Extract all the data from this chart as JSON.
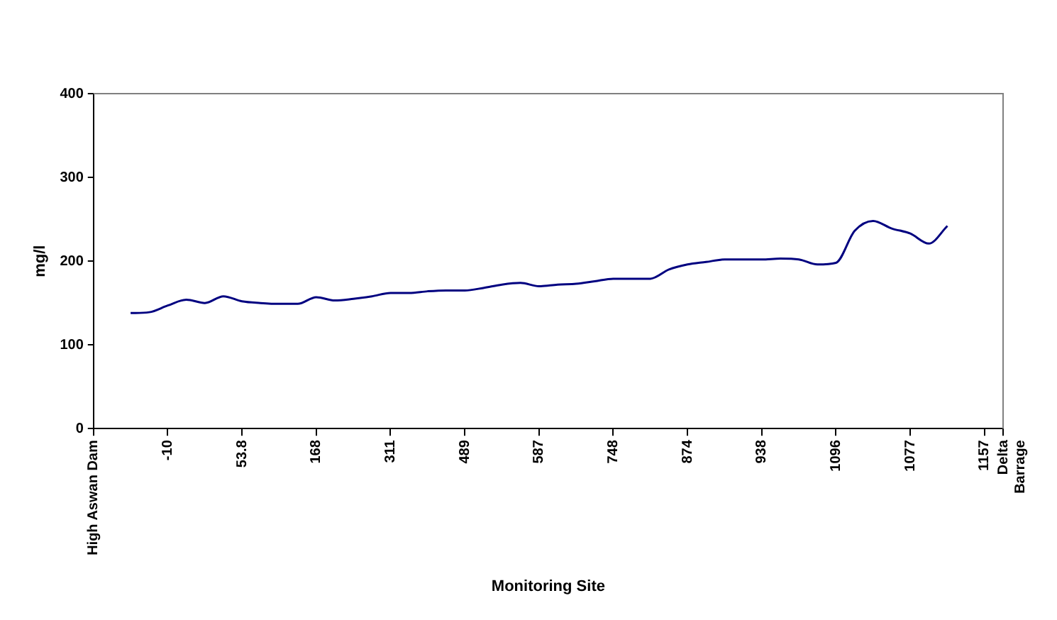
{
  "chart_data": {
    "type": "line",
    "xlabel": "Monitoring Site",
    "ylabel": "mg/l",
    "categories": [
      "High Aswan Dam",
      null,
      null,
      null,
      "-10",
      null,
      null,
      null,
      "53.8",
      null,
      null,
      null,
      "168",
      null,
      null,
      null,
      "311",
      null,
      null,
      null,
      "489",
      null,
      null,
      null,
      "587",
      null,
      null,
      null,
      "748",
      null,
      null,
      null,
      "874",
      null,
      null,
      null,
      "938",
      null,
      null,
      null,
      "1096",
      null,
      null,
      null,
      "1077",
      null,
      null,
      null,
      "1157",
      "Delta Barrage"
    ],
    "series": [
      {
        "color": "#000080",
        "values": [
          null,
          null,
          138,
          139,
          147,
          154,
          150,
          158,
          152,
          150,
          149,
          149,
          157,
          153,
          155,
          158,
          162,
          162,
          164,
          165,
          165,
          168,
          172,
          174,
          170,
          172,
          173,
          176,
          179,
          179,
          179,
          190,
          196,
          199,
          202,
          202,
          202,
          203,
          202,
          196,
          198,
          236,
          248,
          239,
          233,
          221,
          242,
          null,
          null,
          null
        ]
      }
    ],
    "ylim": [
      0,
      400
    ],
    "yticks": [
      0,
      100,
      200,
      300,
      400
    ],
    "grid": false,
    "legend": false,
    "marker": "none",
    "line_style": "solid"
  }
}
